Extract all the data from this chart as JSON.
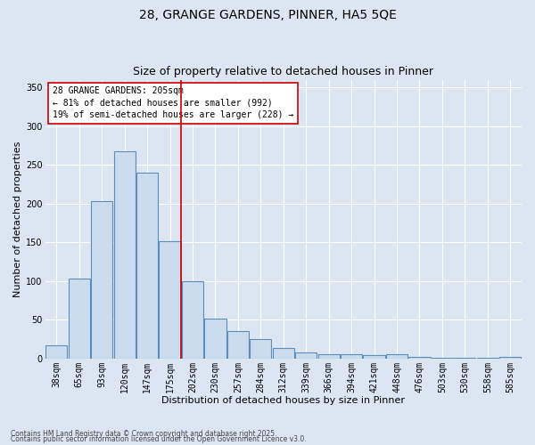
{
  "title1": "28, GRANGE GARDENS, PINNER, HA5 5QE",
  "title2": "Size of property relative to detached houses in Pinner",
  "xlabel": "Distribution of detached houses by size in Pinner",
  "ylabel": "Number of detached properties",
  "categories": [
    "38sqm",
    "65sqm",
    "93sqm",
    "120sqm",
    "147sqm",
    "175sqm",
    "202sqm",
    "230sqm",
    "257sqm",
    "284sqm",
    "312sqm",
    "339sqm",
    "366sqm",
    "394sqm",
    "421sqm",
    "448sqm",
    "476sqm",
    "503sqm",
    "530sqm",
    "558sqm",
    "585sqm"
  ],
  "values": [
    17,
    103,
    203,
    268,
    240,
    152,
    100,
    52,
    35,
    25,
    13,
    8,
    6,
    5,
    4,
    5,
    2,
    1,
    1,
    1,
    2
  ],
  "bar_color": "#ccdcef",
  "bar_edge_color": "#5b8db8",
  "vline_color": "#cc0000",
  "vline_x_index": 5.5,
  "annotation_title": "28 GRANGE GARDENS: 205sqm",
  "annotation_line1": "← 81% of detached houses are smaller (992)",
  "annotation_line2": "19% of semi-detached houses are larger (228) →",
  "annotation_box_facecolor": "#ffffff",
  "annotation_box_edgecolor": "#cc0000",
  "ylim": [
    0,
    360
  ],
  "yticks": [
    0,
    50,
    100,
    150,
    200,
    250,
    300,
    350
  ],
  "bg_color": "#dce6f3",
  "plot_bg_color": "#dce6f3",
  "grid_color": "#ffffff",
  "footer1": "Contains HM Land Registry data © Crown copyright and database right 2025.",
  "footer2": "Contains public sector information licensed under the Open Government Licence v3.0.",
  "title1_fontsize": 10,
  "title2_fontsize": 9,
  "xlabel_fontsize": 8,
  "ylabel_fontsize": 8,
  "tick_fontsize": 7,
  "annotation_fontsize": 7,
  "footer_fontsize": 5.5
}
